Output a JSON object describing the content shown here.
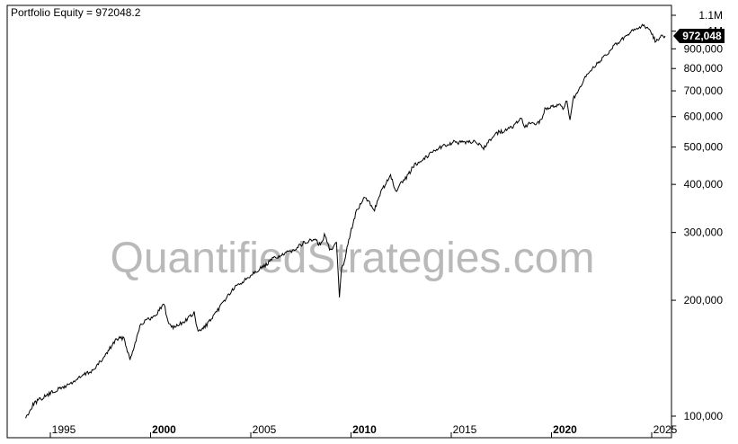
{
  "chart_data": {
    "type": "line",
    "title": "Portfolio Equity = 972048.2",
    "watermark": "QuantifiedStrategies.com",
    "y_scale": "log",
    "y_range": [
      97000,
      1120000
    ],
    "x_range": [
      1993.1,
      2025.0
    ],
    "y_ticks": [
      {
        "value": 1100000,
        "label": "1.1M"
      },
      {
        "value": 1000000,
        "label": "1M"
      },
      {
        "value": 900000,
        "label": "900,000"
      },
      {
        "value": 800000,
        "label": "800,000"
      },
      {
        "value": 700000,
        "label": "700,000"
      },
      {
        "value": 600000,
        "label": "600,000"
      },
      {
        "value": 500000,
        "label": "500,000"
      },
      {
        "value": 400000,
        "label": "400,000"
      },
      {
        "value": 300000,
        "label": "300,000"
      },
      {
        "value": 200000,
        "label": "200,000"
      },
      {
        "value": 100000,
        "label": "100,000"
      }
    ],
    "x_ticks": [
      {
        "value": 1995,
        "label": "1995",
        "major": false
      },
      {
        "value": 2000,
        "label": "2000",
        "major": true
      },
      {
        "value": 2005,
        "label": "2005",
        "major": false
      },
      {
        "value": 2010,
        "label": "2010",
        "major": true
      },
      {
        "value": 2015,
        "label": "2015",
        "major": false
      },
      {
        "value": 2020,
        "label": "2020",
        "major": true
      },
      {
        "value": 2025,
        "label": "2025",
        "major": false
      }
    ],
    "last_value_label": "972,048",
    "last_value": 972048.2,
    "series": [
      {
        "color": "#000000",
        "x": [
          1993.1,
          1993.5,
          1994.0,
          1994.5,
          1995.0,
          1995.5,
          1996.0,
          1996.5,
          1997.0,
          1997.3,
          1997.6,
          1998.0,
          1998.3,
          1998.6,
          1998.8,
          1999.0,
          1999.5,
          1999.8,
          2000.0,
          2000.2,
          2000.5,
          2001.0,
          2001.5,
          2001.7,
          2002.0,
          2002.5,
          2003.0,
          2003.5,
          2004.0,
          2004.5,
          2005.0,
          2005.5,
          2006.0,
          2006.5,
          2007.0,
          2007.5,
          2007.8,
          2008.0,
          2008.3,
          2008.6,
          2008.75,
          2008.85,
          2009.0,
          2009.3,
          2009.6,
          2010.0,
          2010.3,
          2010.5,
          2010.9,
          2011.3,
          2011.6,
          2011.8,
          2012.0,
          2012.5,
          2013.0,
          2013.5,
          2014.0,
          2014.5,
          2015.0,
          2015.5,
          2015.9,
          2016.3,
          2016.6,
          2017.0,
          2017.5,
          2017.8,
          2018.0,
          2018.2,
          2018.5,
          2018.8,
          2019.0,
          2019.4,
          2019.7,
          2019.9,
          2020.1,
          2020.25,
          2020.4,
          2020.8,
          2021.0,
          2021.5,
          2022.0,
          2022.5,
          2023.0,
          2023.5,
          2023.9,
          2024.2,
          2024.5,
          2024.8,
          2025.0
        ],
        "values": [
          99000,
          108000,
          112000,
          116000,
          119000,
          123000,
          128000,
          132000,
          142000,
          150000,
          158000,
          160000,
          140000,
          158000,
          172000,
          176000,
          181000,
          190000,
          196000,
          175000,
          170000,
          176000,
          185000,
          165000,
          170000,
          182000,
          200000,
          215000,
          225000,
          237000,
          245000,
          258000,
          263000,
          272000,
          282000,
          288000,
          278000,
          295000,
          270000,
          285000,
          205000,
          240000,
          255000,
          300000,
          340000,
          370000,
          355000,
          345000,
          390000,
          420000,
          380000,
          400000,
          410000,
          450000,
          468000,
          492000,
          505000,
          515000,
          512000,
          520000,
          495000,
          525000,
          545000,
          550000,
          570000,
          595000,
          560000,
          575000,
          575000,
          585000,
          625000,
          640000,
          645000,
          625000,
          665000,
          585000,
          665000,
          715000,
          755000,
          815000,
          860000,
          920000,
          965000,
          1010000,
          1035000,
          1015000,
          945000,
          965000,
          972048
        ]
      }
    ]
  }
}
